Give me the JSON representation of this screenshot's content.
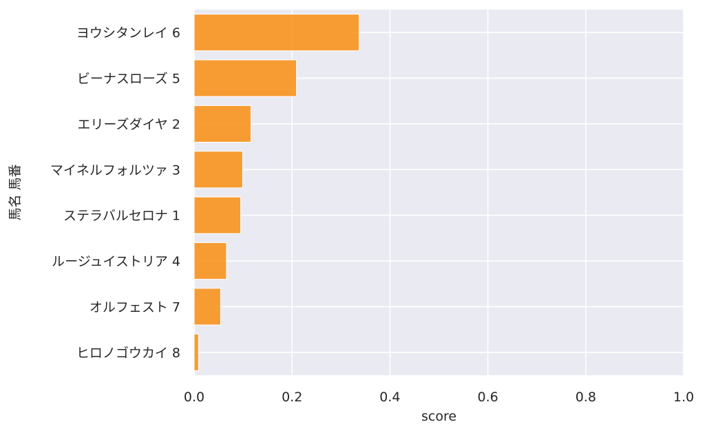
{
  "chart_data": {
    "type": "bar",
    "orientation": "horizontal",
    "categories": [
      "ヨウシタンレイ 6",
      "ビーナスローズ 5",
      "エリーズダイヤ 2",
      "マイネルフォルツァ 3",
      "ステラバルセロナ 1",
      "ルージュイストリア 4",
      "オルフェスト 7",
      "ヒロノゴウカイ 8"
    ],
    "values": [
      0.337,
      0.209,
      0.116,
      0.099,
      0.095,
      0.066,
      0.054,
      0.009
    ],
    "xlabel": "score",
    "ylabel": "馬名 馬番",
    "xlim": [
      0,
      1.0
    ],
    "xticks": [
      "0.0",
      "0.2",
      "0.4",
      "0.6",
      "0.8",
      "1.0"
    ],
    "grid": true,
    "colors": {
      "bar": "#f7931e",
      "bar_edge": "#ffffff",
      "plot_background": "#eaeaf2",
      "grid": "#ffffff"
    }
  }
}
